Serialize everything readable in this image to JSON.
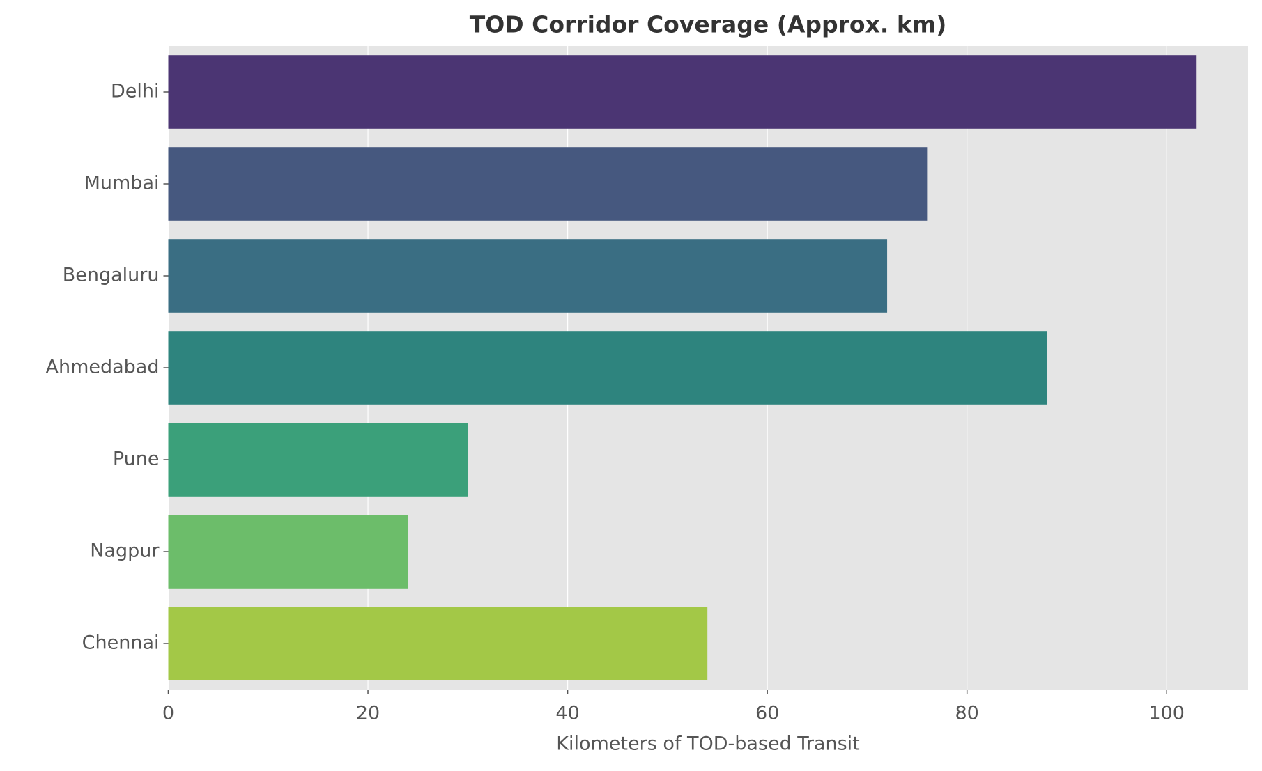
{
  "chart_data": {
    "type": "barh",
    "title": "TOD Corridor Coverage (Approx. km)",
    "x_label": "Kilometers of TOD-based Transit",
    "categories": [
      "Delhi",
      "Mumbai",
      "Bengaluru",
      "Ahmedabad",
      "Pune",
      "Nagpur",
      "Chennai"
    ],
    "values": [
      103,
      76,
      72,
      88,
      30,
      24,
      54
    ],
    "colors": [
      "#4b3573",
      "#46587f",
      "#3a6e83",
      "#2e847e",
      "#3ba07a",
      "#6cbd6a",
      "#a3c847"
    ],
    "xlim": [
      0,
      108.15
    ],
    "xticks": [
      0,
      20,
      40,
      60,
      80,
      100
    ],
    "grid": true
  }
}
